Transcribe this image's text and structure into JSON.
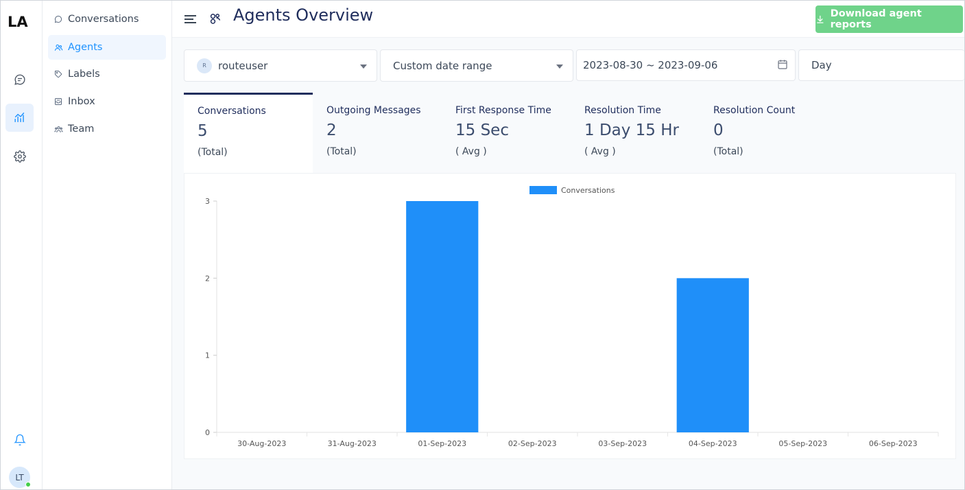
{
  "brand": {
    "logo_text": "LA"
  },
  "rail": {
    "items": [
      {
        "name": "conversations",
        "icon": "chat-bubble-icon"
      },
      {
        "name": "reports",
        "icon": "chart-line-icon",
        "active": true
      },
      {
        "name": "settings",
        "icon": "gear-icon"
      }
    ],
    "notifications_icon": "bell-icon",
    "user_initials": "LT",
    "status_color": "#44ce4b"
  },
  "subnav": {
    "items": [
      {
        "label": "Conversations",
        "icon": "chat-bubble-icon"
      },
      {
        "label": "Agents",
        "icon": "people-icon",
        "active": true
      },
      {
        "label": "Labels",
        "icon": "tag-icon"
      },
      {
        "label": "Inbox",
        "icon": "inbox-icon"
      },
      {
        "label": "Team",
        "icon": "team-icon"
      }
    ]
  },
  "header": {
    "title": "Agents Overview",
    "download_label": "Download agent reports"
  },
  "filters": {
    "agent": {
      "initial": "R",
      "value": "routeuser"
    },
    "date_range": {
      "value": "Custom date range"
    },
    "dates": {
      "value": "2023-08-30 ~ 2023-09-06"
    },
    "granularity": {
      "value": "Day"
    }
  },
  "metrics": [
    {
      "title": "Conversations",
      "value": "5",
      "note": "(Total)",
      "active": true
    },
    {
      "title": "Outgoing Messages",
      "value": "2",
      "note": "(Total)"
    },
    {
      "title": "First Response Time",
      "value": "15 Sec",
      "note": "( Avg )"
    },
    {
      "title": "Resolution Time",
      "value": "1 Day 15 Hr",
      "note": "( Avg )"
    },
    {
      "title": "Resolution Count",
      "value": "0",
      "note": "(Total)"
    }
  ],
  "colors": {
    "accent": "#1f93ff",
    "bar": "#1f8ff9",
    "download": "#6fd38a",
    "title": "#1f2d5c"
  },
  "chart_data": {
    "type": "bar",
    "categories": [
      "30-Aug-2023",
      "31-Aug-2023",
      "01-Sep-2023",
      "02-Sep-2023",
      "03-Sep-2023",
      "04-Sep-2023",
      "05-Sep-2023",
      "06-Sep-2023"
    ],
    "series": [
      {
        "name": "Conversations",
        "values": [
          0,
          0,
          3,
          0,
          0,
          2,
          0,
          0
        ]
      }
    ],
    "yticks": [
      "0",
      "1",
      "2",
      "3"
    ],
    "ylim": [
      0,
      3
    ],
    "legend": "top-center",
    "grid": false
  }
}
